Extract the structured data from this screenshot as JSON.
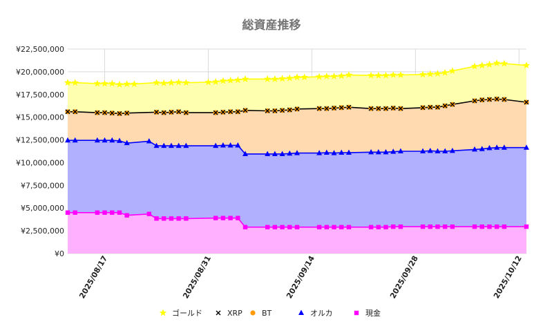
{
  "chart_data": {
    "type": "area",
    "title": "総資産推移",
    "xlabel": "",
    "ylabel": "",
    "ylim": [
      0,
      22500000
    ],
    "yticks": [
      0,
      2500000,
      5000000,
      7500000,
      10000000,
      12500000,
      15000000,
      17500000,
      20000000,
      22500000
    ],
    "ytick_labels": [
      "¥0",
      "¥2,500,000",
      "¥5,000,000",
      "¥7,500,000",
      "¥10,000,000",
      "¥12,500,000",
      "¥15,000,000",
      "¥17,500,000",
      "¥20,000,000",
      "¥22,500,000"
    ],
    "xlim": [
      "2025-08-12",
      "2025-10-13"
    ],
    "xtick_labels": [
      "2025/08/17",
      "2025/08/31",
      "2025/09/14",
      "2025/09/28",
      "2025/10/12"
    ],
    "xtick_dates": [
      "2025-08-17",
      "2025-08-31",
      "2025-09-14",
      "2025-09-28",
      "2025-10-12"
    ],
    "grid": true,
    "legend_position": "bottom",
    "stacked": true,
    "series": [
      {
        "name": "ゴールド",
        "marker": "star",
        "color": "#ffff00",
        "fill": "#ffffb0",
        "points": [
          [
            "2025-08-12",
            18800000
          ],
          [
            "2025-08-13",
            18800000
          ],
          [
            "2025-08-16",
            18700000
          ],
          [
            "2025-08-17",
            18700000
          ],
          [
            "2025-08-18",
            18700000
          ],
          [
            "2025-08-19",
            18600000
          ],
          [
            "2025-08-20",
            18650000
          ],
          [
            "2025-08-21",
            18650000
          ],
          [
            "2025-08-24",
            18800000
          ],
          [
            "2025-08-25",
            18750000
          ],
          [
            "2025-08-26",
            18800000
          ],
          [
            "2025-08-27",
            18850000
          ],
          [
            "2025-08-28",
            18800000
          ],
          [
            "2025-08-31",
            18850000
          ],
          [
            "2025-09-01",
            18900000
          ],
          [
            "2025-09-02",
            19000000
          ],
          [
            "2025-09-03",
            19050000
          ],
          [
            "2025-09-04",
            19100000
          ],
          [
            "2025-09-05",
            19200000
          ],
          [
            "2025-09-08",
            19200000
          ],
          [
            "2025-09-09",
            19200000
          ],
          [
            "2025-09-10",
            19250000
          ],
          [
            "2025-09-11",
            19300000
          ],
          [
            "2025-09-12",
            19400000
          ],
          [
            "2025-09-13",
            19400000
          ],
          [
            "2025-09-15",
            19450000
          ],
          [
            "2025-09-16",
            19500000
          ],
          [
            "2025-09-17",
            19500000
          ],
          [
            "2025-09-18",
            19550000
          ],
          [
            "2025-09-19",
            19650000
          ],
          [
            "2025-09-22",
            19600000
          ],
          [
            "2025-09-23",
            19600000
          ],
          [
            "2025-09-24",
            19600000
          ],
          [
            "2025-09-25",
            19650000
          ],
          [
            "2025-09-26",
            19650000
          ],
          [
            "2025-09-29",
            19700000
          ],
          [
            "2025-09-30",
            19750000
          ],
          [
            "2025-10-01",
            19800000
          ],
          [
            "2025-10-02",
            19900000
          ],
          [
            "2025-10-03",
            20100000
          ],
          [
            "2025-10-06",
            20600000
          ],
          [
            "2025-10-07",
            20700000
          ],
          [
            "2025-10-08",
            20800000
          ],
          [
            "2025-10-09",
            20950000
          ],
          [
            "2025-10-10",
            20900000
          ],
          [
            "2025-10-13",
            20700000
          ]
        ]
      },
      {
        "name": "XRP",
        "marker": "x",
        "color": "#000000",
        "fill": "#ffdab0",
        "points": [
          [
            "2025-08-12",
            15600000
          ],
          [
            "2025-08-13",
            15600000
          ],
          [
            "2025-08-16",
            15500000
          ],
          [
            "2025-08-17",
            15500000
          ],
          [
            "2025-08-18",
            15450000
          ],
          [
            "2025-08-19",
            15400000
          ],
          [
            "2025-08-20",
            15450000
          ],
          [
            "2025-08-24",
            15550000
          ],
          [
            "2025-08-25",
            15500000
          ],
          [
            "2025-08-26",
            15550000
          ],
          [
            "2025-08-27",
            15600000
          ],
          [
            "2025-08-28",
            15500000
          ],
          [
            "2025-09-01",
            15500000
          ],
          [
            "2025-09-02",
            15550000
          ],
          [
            "2025-09-03",
            15600000
          ],
          [
            "2025-09-04",
            15600000
          ],
          [
            "2025-09-05",
            15750000
          ],
          [
            "2025-09-08",
            15700000
          ],
          [
            "2025-09-09",
            15700000
          ],
          [
            "2025-09-10",
            15750000
          ],
          [
            "2025-09-11",
            15800000
          ],
          [
            "2025-09-12",
            15900000
          ],
          [
            "2025-09-15",
            15950000
          ],
          [
            "2025-09-16",
            15950000
          ],
          [
            "2025-09-17",
            16000000
          ],
          [
            "2025-09-18",
            16050000
          ],
          [
            "2025-09-19",
            16100000
          ],
          [
            "2025-09-22",
            15950000
          ],
          [
            "2025-09-23",
            15950000
          ],
          [
            "2025-09-24",
            15950000
          ],
          [
            "2025-09-25",
            16000000
          ],
          [
            "2025-09-26",
            15950000
          ],
          [
            "2025-09-29",
            16050000
          ],
          [
            "2025-09-30",
            16100000
          ],
          [
            "2025-10-01",
            16100000
          ],
          [
            "2025-10-02",
            16250000
          ],
          [
            "2025-10-03",
            16400000
          ],
          [
            "2025-10-06",
            16800000
          ],
          [
            "2025-10-07",
            16900000
          ],
          [
            "2025-10-08",
            16950000
          ],
          [
            "2025-10-09",
            17000000
          ],
          [
            "2025-10-10",
            16950000
          ],
          [
            "2025-10-13",
            16650000
          ]
        ]
      },
      {
        "name": "BT",
        "marker": "circle",
        "color": "#ff9900",
        "fill": "#ffdab0",
        "points": [
          [
            "2025-08-12",
            15600000
          ],
          [
            "2025-08-13",
            15600000
          ],
          [
            "2025-08-16",
            15500000
          ],
          [
            "2025-08-17",
            15500000
          ],
          [
            "2025-08-18",
            15450000
          ],
          [
            "2025-08-19",
            15400000
          ],
          [
            "2025-08-20",
            15450000
          ],
          [
            "2025-08-24",
            15550000
          ],
          [
            "2025-08-25",
            15500000
          ],
          [
            "2025-08-26",
            15550000
          ],
          [
            "2025-08-27",
            15600000
          ],
          [
            "2025-08-28",
            15500000
          ],
          [
            "2025-09-01",
            15500000
          ],
          [
            "2025-09-02",
            15550000
          ],
          [
            "2025-09-03",
            15600000
          ],
          [
            "2025-09-04",
            15600000
          ],
          [
            "2025-09-05",
            15750000
          ],
          [
            "2025-09-08",
            15700000
          ],
          [
            "2025-09-09",
            15700000
          ],
          [
            "2025-09-10",
            15750000
          ],
          [
            "2025-09-11",
            15800000
          ],
          [
            "2025-09-12",
            15900000
          ],
          [
            "2025-09-15",
            15950000
          ],
          [
            "2025-09-16",
            15950000
          ],
          [
            "2025-09-17",
            16000000
          ],
          [
            "2025-09-18",
            16050000
          ],
          [
            "2025-09-19",
            16100000
          ],
          [
            "2025-09-22",
            15950000
          ],
          [
            "2025-09-23",
            15950000
          ],
          [
            "2025-09-24",
            15950000
          ],
          [
            "2025-09-25",
            16000000
          ],
          [
            "2025-09-26",
            15950000
          ],
          [
            "2025-09-29",
            16050000
          ],
          [
            "2025-09-30",
            16100000
          ],
          [
            "2025-10-01",
            16100000
          ],
          [
            "2025-10-02",
            16250000
          ],
          [
            "2025-10-03",
            16400000
          ],
          [
            "2025-10-06",
            16800000
          ],
          [
            "2025-10-07",
            16900000
          ],
          [
            "2025-10-08",
            16950000
          ],
          [
            "2025-10-09",
            17000000
          ],
          [
            "2025-10-10",
            16950000
          ],
          [
            "2025-10-13",
            16650000
          ]
        ]
      },
      {
        "name": "オルカ",
        "marker": "triangle",
        "color": "#0000ff",
        "fill": "#b0b0ff",
        "points": [
          [
            "2025-08-12",
            12450000
          ],
          [
            "2025-08-13",
            12450000
          ],
          [
            "2025-08-16",
            12450000
          ],
          [
            "2025-08-17",
            12450000
          ],
          [
            "2025-08-18",
            12450000
          ],
          [
            "2025-08-19",
            12400000
          ],
          [
            "2025-08-20",
            12150000
          ],
          [
            "2025-08-23",
            12350000
          ],
          [
            "2025-08-24",
            11850000
          ],
          [
            "2025-08-25",
            11850000
          ],
          [
            "2025-08-26",
            11850000
          ],
          [
            "2025-08-27",
            11850000
          ],
          [
            "2025-08-28",
            11850000
          ],
          [
            "2025-09-01",
            11850000
          ],
          [
            "2025-09-02",
            11900000
          ],
          [
            "2025-09-03",
            11900000
          ],
          [
            "2025-09-04",
            11900000
          ],
          [
            "2025-09-05",
            10950000
          ],
          [
            "2025-09-08",
            10950000
          ],
          [
            "2025-09-09",
            10950000
          ],
          [
            "2025-09-10",
            10950000
          ],
          [
            "2025-09-11",
            11000000
          ],
          [
            "2025-09-12",
            11050000
          ],
          [
            "2025-09-15",
            11050000
          ],
          [
            "2025-09-16",
            11100000
          ],
          [
            "2025-09-17",
            11050000
          ],
          [
            "2025-09-18",
            11100000
          ],
          [
            "2025-09-19",
            11100000
          ],
          [
            "2025-09-22",
            11150000
          ],
          [
            "2025-09-23",
            11150000
          ],
          [
            "2025-09-24",
            11150000
          ],
          [
            "2025-09-25",
            11200000
          ],
          [
            "2025-09-26",
            11250000
          ],
          [
            "2025-09-29",
            11250000
          ],
          [
            "2025-09-30",
            11300000
          ],
          [
            "2025-10-01",
            11250000
          ],
          [
            "2025-10-02",
            11250000
          ],
          [
            "2025-10-03",
            11300000
          ],
          [
            "2025-10-06",
            11450000
          ],
          [
            "2025-10-07",
            11500000
          ],
          [
            "2025-10-08",
            11600000
          ],
          [
            "2025-10-09",
            11650000
          ],
          [
            "2025-10-10",
            11650000
          ],
          [
            "2025-10-13",
            11650000
          ]
        ]
      },
      {
        "name": "現金",
        "marker": "square",
        "color": "#ff00ff",
        "fill": "#ffb0ff",
        "points": [
          [
            "2025-08-12",
            4500000
          ],
          [
            "2025-08-13",
            4500000
          ],
          [
            "2025-08-16",
            4500000
          ],
          [
            "2025-08-17",
            4500000
          ],
          [
            "2025-08-18",
            4500000
          ],
          [
            "2025-08-19",
            4500000
          ],
          [
            "2025-08-20",
            4200000
          ],
          [
            "2025-08-23",
            4350000
          ],
          [
            "2025-08-24",
            3850000
          ],
          [
            "2025-08-25",
            3850000
          ],
          [
            "2025-08-26",
            3850000
          ],
          [
            "2025-08-27",
            3850000
          ],
          [
            "2025-08-28",
            3850000
          ],
          [
            "2025-09-01",
            3900000
          ],
          [
            "2025-09-02",
            3900000
          ],
          [
            "2025-09-03",
            3900000
          ],
          [
            "2025-09-04",
            3900000
          ],
          [
            "2025-09-05",
            2900000
          ],
          [
            "2025-09-08",
            2900000
          ],
          [
            "2025-09-09",
            2900000
          ],
          [
            "2025-09-10",
            2900000
          ],
          [
            "2025-09-11",
            2900000
          ],
          [
            "2025-09-12",
            2900000
          ],
          [
            "2025-09-15",
            2900000
          ],
          [
            "2025-09-16",
            2900000
          ],
          [
            "2025-09-17",
            2900000
          ],
          [
            "2025-09-18",
            2900000
          ],
          [
            "2025-09-19",
            2900000
          ],
          [
            "2025-09-22",
            2900000
          ],
          [
            "2025-09-23",
            2900000
          ],
          [
            "2025-09-24",
            2900000
          ],
          [
            "2025-09-25",
            2950000
          ],
          [
            "2025-09-26",
            2950000
          ],
          [
            "2025-09-29",
            2950000
          ],
          [
            "2025-09-30",
            2950000
          ],
          [
            "2025-10-01",
            2950000
          ],
          [
            "2025-10-02",
            2950000
          ],
          [
            "2025-10-03",
            2950000
          ],
          [
            "2025-10-06",
            2950000
          ],
          [
            "2025-10-07",
            2950000
          ],
          [
            "2025-10-08",
            2950000
          ],
          [
            "2025-10-09",
            2950000
          ],
          [
            "2025-10-10",
            2950000
          ],
          [
            "2025-10-13",
            2950000
          ]
        ]
      }
    ]
  }
}
